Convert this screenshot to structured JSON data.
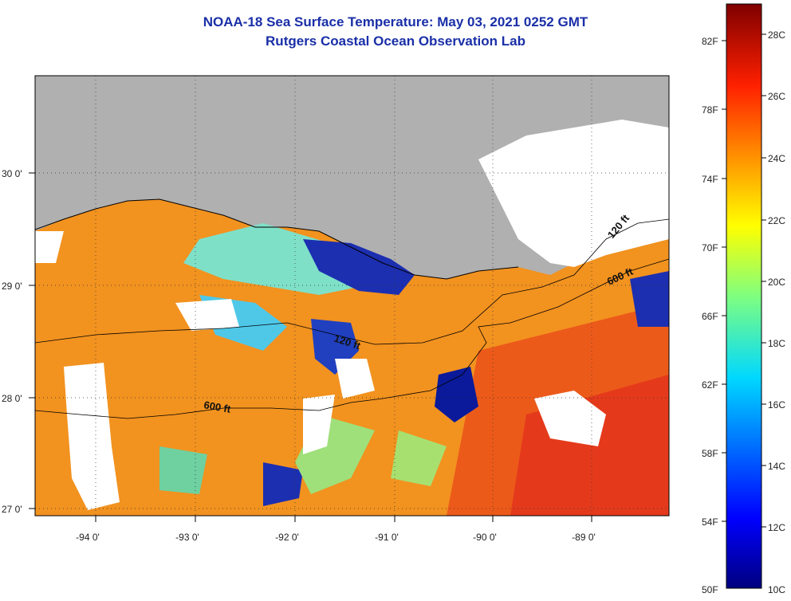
{
  "header": {
    "title_line1": "NOAA-18 Sea Surface Temperature:  May 03, 2021 0252 GMT",
    "title_line2": "Rutgers Coastal Ocean Observation Lab"
  },
  "map": {
    "x_ticks": [
      "-94 0'",
      "-93 0'",
      "-92 0'",
      "-91 0'",
      "-90 0'",
      "-89 0'"
    ],
    "y_ticks": [
      "30 0'",
      "29 0'",
      "28 0'",
      "27 0'"
    ],
    "contour_labels": [
      "120 ft",
      "600 ft",
      "120 ft",
      "600 ft"
    ],
    "colors": {
      "land": "#b0b0b0",
      "cloud": "#ffffff",
      "warm": "#f4901e",
      "hot": "#e8401a",
      "cold": "#1c2fb0"
    }
  },
  "colorbar": {
    "fahrenheit_labels": [
      "82F",
      "78F",
      "74F",
      "70F",
      "66F",
      "62F",
      "58F",
      "54F",
      "50F"
    ],
    "celsius_labels": [
      "28C",
      "26C",
      "24C",
      "22C",
      "20C",
      "18C",
      "16C",
      "14C",
      "12C",
      "10C"
    ],
    "range_celsius": [
      10,
      29
    ]
  }
}
